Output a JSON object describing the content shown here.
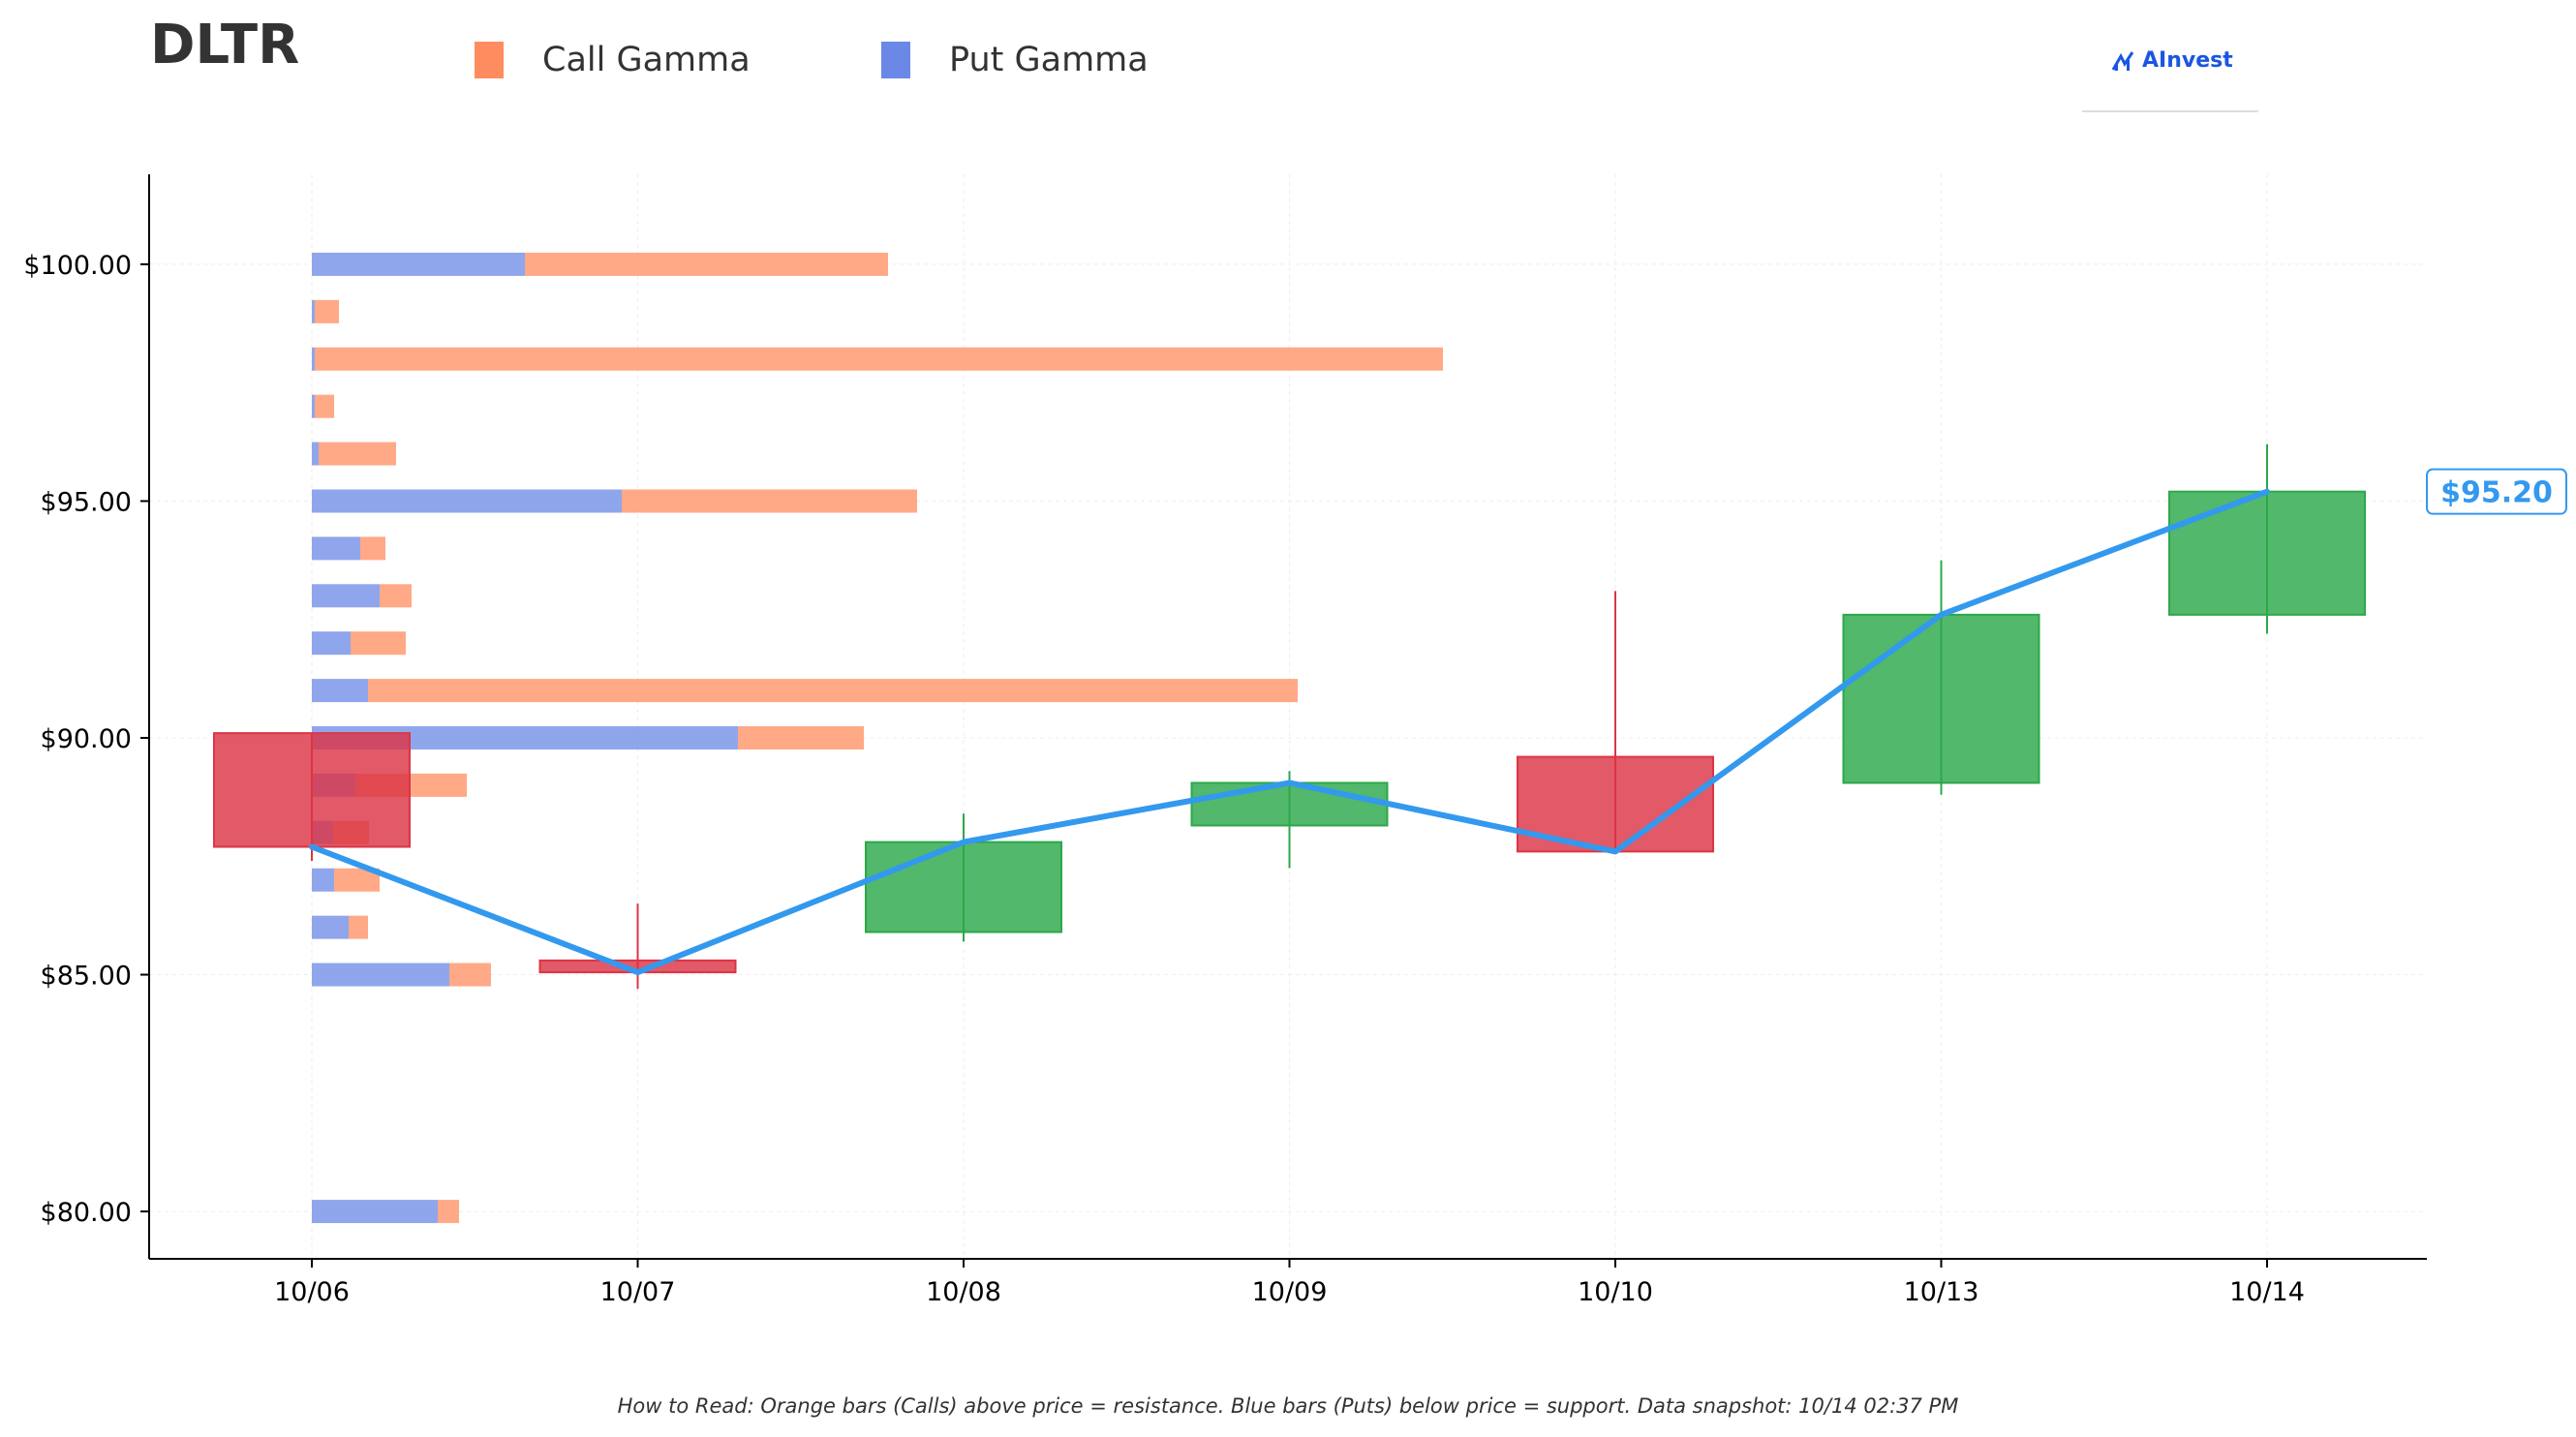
{
  "header": {
    "ticker": "DLTR",
    "brand": "AInvest",
    "brand_icon": "ainvest-logo-icon"
  },
  "legend": [
    {
      "label": "Call Gamma",
      "color": "#ff8c5f"
    },
    {
      "label": "Put Gamma",
      "color": "#6b88e6"
    }
  ],
  "footnote": "How to Read: Orange bars (Calls) above price = resistance. Blue bars (Puts) below price = support. Data snapshot: 10/14 02:37 PM",
  "colors": {
    "call": "#ff8c5f",
    "put": "#6b88e6",
    "up_candle": "#2ca84a",
    "down_candle": "#dc3545",
    "price_line": "#3399ee"
  },
  "chart_data": {
    "type": "candlestick",
    "categories": [
      "10/06",
      "10/07",
      "10/08",
      "10/09",
      "10/10",
      "10/13",
      "10/14"
    ],
    "ylim": [
      79,
      101.9
    ],
    "yticks": [
      80,
      85,
      90,
      95,
      100
    ],
    "ytick_labels": [
      "$80.00",
      "$85.00",
      "$90.00",
      "$95.00",
      "$100.00"
    ],
    "grid": true,
    "candles": [
      {
        "date": "10/06",
        "open": 90.1,
        "close": 87.7,
        "high": 90.1,
        "low": 87.4
      },
      {
        "date": "10/07",
        "open": 85.3,
        "close": 85.05,
        "high": 86.5,
        "low": 84.7
      },
      {
        "date": "10/08",
        "open": 85.9,
        "close": 87.8,
        "high": 88.4,
        "low": 85.7
      },
      {
        "date": "10/09",
        "open": 88.15,
        "close": 89.05,
        "high": 89.3,
        "low": 87.25
      },
      {
        "date": "10/10",
        "open": 89.6,
        "close": 87.6,
        "high": 93.1,
        "low": 87.6
      },
      {
        "date": "10/13",
        "open": 89.05,
        "close": 92.6,
        "high": 93.75,
        "low": 88.8
      },
      {
        "date": "10/14",
        "open": 92.6,
        "close": 95.2,
        "high": 96.2,
        "low": 92.2
      }
    ],
    "price_line": {
      "name": "Close",
      "values": [
        87.7,
        85.05,
        87.8,
        89.05,
        87.6,
        92.6,
        95.2
      ],
      "last_label": "$95.20"
    },
    "gamma_bars": [
      {
        "strike": 100,
        "put": 2.2,
        "call": 3.75
      },
      {
        "strike": 99,
        "put": 0.03,
        "call": 0.25
      },
      {
        "strike": 98,
        "put": 0.03,
        "call": 11.65
      },
      {
        "strike": 97,
        "put": 0.03,
        "call": 0.2
      },
      {
        "strike": 96,
        "put": 0.07,
        "call": 0.8
      },
      {
        "strike": 95,
        "put": 3.2,
        "call": 3.05
      },
      {
        "strike": 94,
        "put": 0.5,
        "call": 0.26
      },
      {
        "strike": 93,
        "put": 0.7,
        "call": 0.33
      },
      {
        "strike": 92,
        "put": 0.4,
        "call": 0.57
      },
      {
        "strike": 91,
        "put": 0.58,
        "call": 9.6
      },
      {
        "strike": 90,
        "put": 4.4,
        "call": 1.3
      },
      {
        "strike": 89,
        "put": 0.45,
        "call": 1.15
      },
      {
        "strike": 88,
        "put": 0.22,
        "call": 0.37
      },
      {
        "strike": 87,
        "put": 0.23,
        "call": 0.47
      },
      {
        "strike": 86,
        "put": 0.38,
        "call": 0.2
      },
      {
        "strike": 85,
        "put": 1.42,
        "call": 0.43
      },
      {
        "strike": 80,
        "put": 1.3,
        "call": 0.22
      }
    ]
  }
}
